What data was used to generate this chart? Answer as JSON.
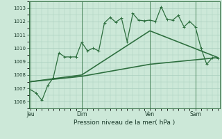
{
  "background_color": "#cce8d8",
  "grid_color": "#aacfbe",
  "line_color": "#2d6e3e",
  "ylim": [
    1005.5,
    1013.5
  ],
  "yticks": [
    1006,
    1007,
    1008,
    1009,
    1010,
    1011,
    1012,
    1013
  ],
  "xlabel": "Pression niveau de la mer( hPa )",
  "day_labels": [
    "Jeu",
    "Dim",
    "Ven",
    "Sam"
  ],
  "day_positions": [
    0,
    9,
    21,
    29
  ],
  "vline_positions": [
    0,
    9,
    21,
    29
  ],
  "line1_x": [
    0,
    1,
    2,
    3,
    4,
    5,
    6,
    7,
    8,
    9,
    10,
    11,
    12,
    13,
    14,
    15,
    16,
    17,
    18,
    19,
    20,
    21,
    22,
    23,
    24,
    25,
    26,
    27,
    28,
    29,
    30,
    31,
    32,
    33
  ],
  "line1_y": [
    1006.9,
    1006.65,
    1006.1,
    1007.2,
    1007.8,
    1009.65,
    1009.35,
    1009.35,
    1009.35,
    1010.45,
    1009.8,
    1010.0,
    1009.8,
    1011.9,
    1012.3,
    1011.95,
    1012.25,
    1010.5,
    1012.6,
    1012.1,
    1012.05,
    1012.1,
    1012.0,
    1013.1,
    1012.15,
    1012.1,
    1012.45,
    1011.6,
    1012.0,
    1011.6,
    1010.0,
    1008.8,
    1009.3,
    1009.25
  ],
  "line2_x": [
    0,
    9,
    21,
    33
  ],
  "line2_y": [
    1007.5,
    1007.9,
    1008.8,
    1009.3
  ],
  "line3_x": [
    0,
    9,
    21,
    33
  ],
  "line3_y": [
    1007.5,
    1008.0,
    1011.3,
    1009.3
  ],
  "linewidth": 0.9,
  "marker_size": 3.0
}
